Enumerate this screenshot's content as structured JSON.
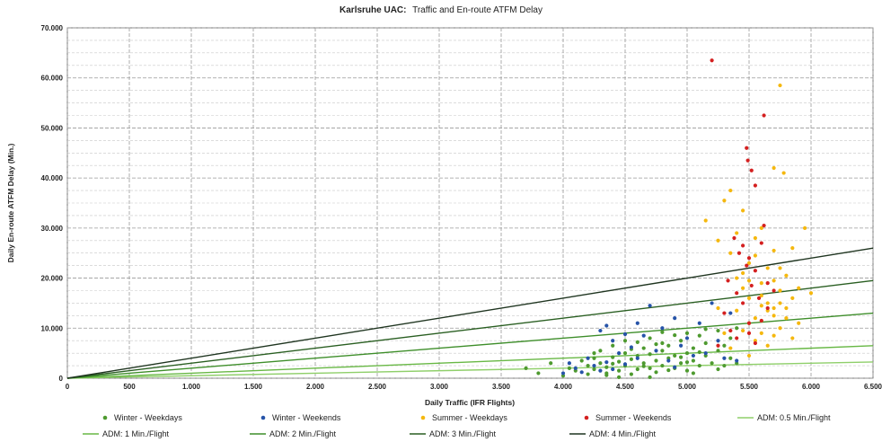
{
  "chart_data": {
    "type": "scatter",
    "title": {
      "bold": "Karlsruhe UAC:",
      "rest": "Traffic and En-route ATFM Delay"
    },
    "xlabel": "Daily Traffic (IFR Flights)",
    "ylabel": "Daily En-route ATFM Delay (Min.)",
    "xlim": [
      0,
      6500
    ],
    "ylim": [
      0,
      70000
    ],
    "x_ticks": [
      0,
      500,
      1000,
      1500,
      2000,
      2500,
      3000,
      3500,
      4000,
      4500,
      5000,
      5500,
      6000,
      6500
    ],
    "x_tick_labels": [
      "0",
      "500",
      "1.000",
      "1.500",
      "2.000",
      "2.500",
      "3.000",
      "3.500",
      "4.000",
      "4.500",
      "5.000",
      "5.500",
      "6.000",
      "6.500"
    ],
    "y_ticks": [
      0,
      10000,
      20000,
      30000,
      40000,
      50000,
      60000,
      70000
    ],
    "y_tick_labels": [
      "0",
      "10.000",
      "20.000",
      "30.000",
      "40.000",
      "50.000",
      "60.000",
      "70.000"
    ],
    "grid": true,
    "legend_placement": "bottom",
    "series": [
      {
        "name": "Winter - Weekdays",
        "kind": "points",
        "color": "#4e9a2f",
        "points": [
          [
            3700,
            2000
          ],
          [
            3800,
            1000
          ],
          [
            3900,
            3000
          ],
          [
            4000,
            500
          ],
          [
            4050,
            2000
          ],
          [
            4100,
            1500
          ],
          [
            4150,
            3500
          ],
          [
            4200,
            800
          ],
          [
            4200,
            2500
          ],
          [
            4250,
            1800
          ],
          [
            4250,
            4000
          ],
          [
            4300,
            3000
          ],
          [
            4300,
            5500
          ],
          [
            4350,
            1000
          ],
          [
            4350,
            2200
          ],
          [
            4400,
            4200
          ],
          [
            4400,
            6500
          ],
          [
            4450,
            1500
          ],
          [
            4450,
            3300
          ],
          [
            4500,
            2500
          ],
          [
            4500,
            5000
          ],
          [
            4500,
            7500
          ],
          [
            4550,
            800
          ],
          [
            4550,
            3800
          ],
          [
            4600,
            1800
          ],
          [
            4600,
            4500
          ],
          [
            4650,
            3000
          ],
          [
            4650,
            6000
          ],
          [
            4700,
            2000
          ],
          [
            4700,
            4800
          ],
          [
            4700,
            8000
          ],
          [
            4750,
            1200
          ],
          [
            4750,
            3500
          ],
          [
            4800,
            2500
          ],
          [
            4800,
            5500
          ],
          [
            4800,
            7000
          ],
          [
            4850,
            4000
          ],
          [
            4850,
            6500
          ],
          [
            4900,
            2000
          ],
          [
            4900,
            4500
          ],
          [
            4950,
            3000
          ],
          [
            4950,
            7500
          ],
          [
            5000,
            1500
          ],
          [
            5000,
            5000
          ],
          [
            5000,
            9000
          ],
          [
            5050,
            3500
          ],
          [
            5050,
            6000
          ],
          [
            5100,
            2500
          ],
          [
            5100,
            8500
          ],
          [
            5150,
            4500
          ],
          [
            5150,
            7000
          ],
          [
            5200,
            3000
          ],
          [
            5250,
            5500
          ],
          [
            5250,
            9500
          ],
          [
            5300,
            2500
          ],
          [
            5300,
            6500
          ],
          [
            5350,
            4000
          ],
          [
            5350,
            8000
          ],
          [
            5400,
            3000
          ],
          [
            5400,
            10000
          ],
          [
            4350,
            600
          ],
          [
            4450,
            200
          ],
          [
            4550,
            5800
          ],
          [
            4650,
            2400
          ],
          [
            4750,
            6800
          ],
          [
            4850,
            1600
          ],
          [
            4950,
            4200
          ],
          [
            5050,
            1000
          ],
          [
            5150,
            9800
          ],
          [
            5250,
            1800
          ],
          [
            4600,
            7200
          ],
          [
            4900,
            8600
          ],
          [
            4400,
            2900
          ],
          [
            4700,
            200
          ],
          [
            5000,
            3200
          ],
          [
            4250,
            5000
          ],
          [
            4800,
            9200
          ],
          [
            5100,
            5200
          ]
        ]
      },
      {
        "name": "Winter - Weekends",
        "kind": "points",
        "color": "#2653a8",
        "points": [
          [
            4000,
            1000
          ],
          [
            4050,
            3000
          ],
          [
            4100,
            2000
          ],
          [
            4150,
            1200
          ],
          [
            4200,
            4000
          ],
          [
            4250,
            2500
          ],
          [
            4300,
            9500
          ],
          [
            4300,
            1500
          ],
          [
            4350,
            3200
          ],
          [
            4400,
            7500
          ],
          [
            4400,
            1800
          ],
          [
            4450,
            5000
          ],
          [
            4500,
            2800
          ],
          [
            4550,
            6200
          ],
          [
            4600,
            4000
          ],
          [
            4650,
            8500
          ],
          [
            4700,
            14500
          ],
          [
            4750,
            5500
          ],
          [
            4800,
            10000
          ],
          [
            4850,
            3500
          ],
          [
            4900,
            12000
          ],
          [
            4950,
            6500
          ],
          [
            5000,
            8000
          ],
          [
            5050,
            4500
          ],
          [
            5100,
            11000
          ],
          [
            5150,
            5000
          ],
          [
            5200,
            15000
          ],
          [
            5300,
            4000
          ],
          [
            5400,
            3500
          ],
          [
            5350,
            13000
          ],
          [
            5250,
            7500
          ],
          [
            4600,
            11000
          ],
          [
            4900,
            2200
          ],
          [
            4500,
            8800
          ],
          [
            4350,
            10500
          ]
        ]
      },
      {
        "name": "Summer - Weekdays",
        "kind": "points",
        "color": "#f5b80f",
        "points": [
          [
            5150,
            31500
          ],
          [
            5250,
            27500
          ],
          [
            5300,
            35500
          ],
          [
            5350,
            37500
          ],
          [
            5350,
            25000
          ],
          [
            5400,
            29000
          ],
          [
            5400,
            20000
          ],
          [
            5450,
            33500
          ],
          [
            5450,
            18000
          ],
          [
            5500,
            23000
          ],
          [
            5500,
            16000
          ],
          [
            5550,
            28000
          ],
          [
            5550,
            12000
          ],
          [
            5600,
            19000
          ],
          [
            5600,
            30000
          ],
          [
            5600,
            9000
          ],
          [
            5650,
            22000
          ],
          [
            5650,
            15000
          ],
          [
            5700,
            42000
          ],
          [
            5700,
            25500
          ],
          [
            5700,
            12500
          ],
          [
            5750,
            58500
          ],
          [
            5750,
            17500
          ],
          [
            5750,
            10000
          ],
          [
            5780,
            41000
          ],
          [
            5800,
            20500
          ],
          [
            5800,
            14000
          ],
          [
            5850,
            26000
          ],
          [
            5850,
            8000
          ],
          [
            5900,
            18000
          ],
          [
            5950,
            30000
          ],
          [
            6000,
            17000
          ],
          [
            5350,
            6000
          ],
          [
            5400,
            13500
          ],
          [
            5450,
            9500
          ],
          [
            5500,
            11000
          ],
          [
            5550,
            7500
          ],
          [
            5600,
            14500
          ],
          [
            5650,
            6500
          ],
          [
            5700,
            19500
          ],
          [
            5750,
            15000
          ],
          [
            5800,
            12000
          ],
          [
            5500,
            19500
          ],
          [
            5600,
            16500
          ],
          [
            5700,
            8500
          ],
          [
            5250,
            14000
          ],
          [
            5300,
            9000
          ],
          [
            5450,
            21000
          ],
          [
            5550,
            24500
          ],
          [
            5650,
            13500
          ],
          [
            5750,
            22000
          ],
          [
            5850,
            16000
          ],
          [
            5900,
            11000
          ],
          [
            5500,
            4500
          ],
          [
            5600,
            11500
          ],
          [
            5700,
            14000
          ]
        ]
      },
      {
        "name": "Summer - Weekends",
        "kind": "points",
        "color": "#d42020",
        "points": [
          [
            5200,
            63500
          ],
          [
            5480,
            46000
          ],
          [
            5490,
            43500
          ],
          [
            5520,
            41500
          ],
          [
            5550,
            38500
          ],
          [
            5620,
            52500
          ],
          [
            5380,
            28000
          ],
          [
            5420,
            25000
          ],
          [
            5450,
            26500
          ],
          [
            5480,
            22500
          ],
          [
            5500,
            24000
          ],
          [
            5520,
            18500
          ],
          [
            5550,
            21500
          ],
          [
            5580,
            16000
          ],
          [
            5600,
            27000
          ],
          [
            5620,
            30500
          ],
          [
            5650,
            19000
          ],
          [
            5400,
            17000
          ],
          [
            5450,
            15000
          ],
          [
            5500,
            11000
          ],
          [
            5350,
            9500
          ],
          [
            5300,
            13000
          ],
          [
            5600,
            11500
          ],
          [
            5650,
            14000
          ],
          [
            5400,
            8000
          ],
          [
            5250,
            6500
          ],
          [
            5550,
            7000
          ],
          [
            5500,
            9000
          ],
          [
            5700,
            17500
          ],
          [
            5330,
            19500
          ]
        ]
      },
      {
        "name": "ADM: 0.5 Min./Flight",
        "kind": "line",
        "slope": 0.5,
        "color": "#8fcf6a"
      },
      {
        "name": "ADM: 1 Min./Flight",
        "kind": "line",
        "slope": 1,
        "color": "#68b845"
      },
      {
        "name": "ADM: 2 Min./Flight",
        "kind": "line",
        "slope": 2,
        "color": "#3e8e2a"
      },
      {
        "name": "ADM: 3 Min./Flight",
        "kind": "line",
        "slope": 3,
        "color": "#2a5f22"
      },
      {
        "name": "ADM: 4 Min./Flight",
        "kind": "line",
        "slope": 4,
        "color": "#1f3520"
      }
    ]
  }
}
